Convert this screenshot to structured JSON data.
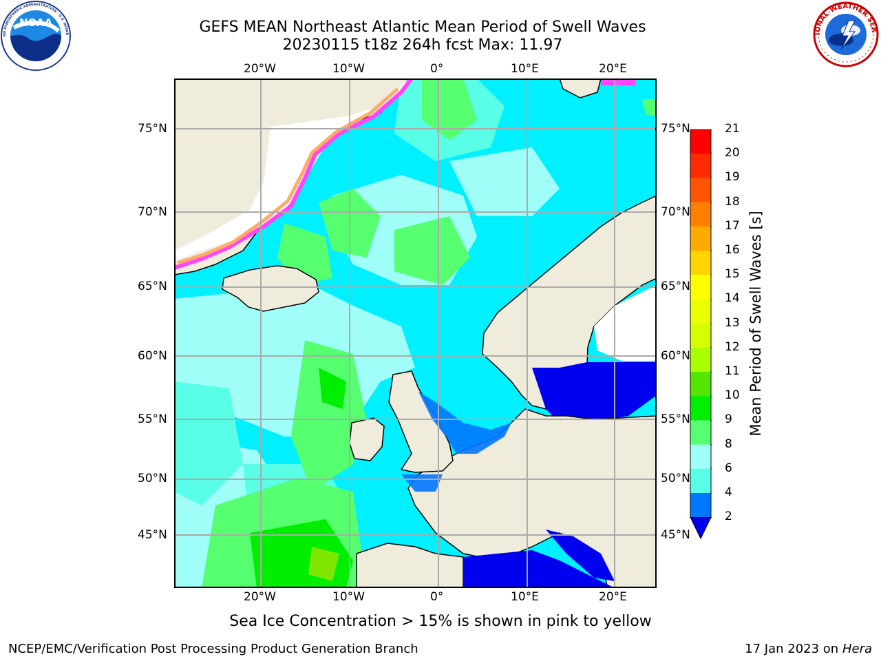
{
  "title": {
    "line1": "GEFS MEAN Northeast Atlantic Mean Period of Swell Waves",
    "line2": "20230115 t18z 264h fcst   Max: 11.97"
  },
  "logos": {
    "noaa": {
      "text": "NOAA",
      "ring_text": "NATIONAL OCEANIC AND ATMOSPHERIC ADMINISTRATION · U.S. DEPARTMENT OF COMMERCE"
    },
    "nws": {
      "ring_text": "NATIONAL WEATHER SERVICE"
    }
  },
  "map": {
    "lon_labels": [
      "20°W",
      "10°W",
      "0°",
      "10°E",
      "20°E"
    ],
    "lat_labels": [
      "75°N",
      "70°N",
      "65°N",
      "60°N",
      "55°N",
      "50°N",
      "45°N"
    ],
    "colors": {
      "land": "#efecdc",
      "water_light_cyan": "#00f0ff",
      "water_pale": "#9ffff8",
      "water_medium": "#58ffe6",
      "green_light": "#55ff70",
      "green": "#00ee00",
      "blue": "#0000ee",
      "ice_pink": "#ff44ff",
      "ice_orange": "#ffaa66",
      "grid": "#aaaaaa"
    }
  },
  "colorbar": {
    "title": "Mean Period of Swell Waves [s]",
    "ticks": [
      "21",
      "20",
      "19",
      "18",
      "17",
      "16",
      "15",
      "14",
      "13",
      "12",
      "11",
      "10",
      "9",
      "8",
      "6",
      "4",
      "2"
    ],
    "colors": [
      "#ff0000",
      "#ff2a00",
      "#ff5500",
      "#ff8000",
      "#ffaa00",
      "#ffd400",
      "#ffff00",
      "#eaff00",
      "#d4ff00",
      "#aaff00",
      "#55e600",
      "#00ee00",
      "#55ff70",
      "#9ffff8",
      "#58ffe6",
      "#00f0ff",
      "#0077ff",
      "#0000ee"
    ]
  },
  "caption": "Sea Ice Concentration > 15% is shown in pink to yellow",
  "footer": {
    "left": "NCEP/EMC/Verification Post Processing Product Generation Branch",
    "right_prefix": "17 Jan 2023 on ",
    "right_italic": "Hera"
  }
}
